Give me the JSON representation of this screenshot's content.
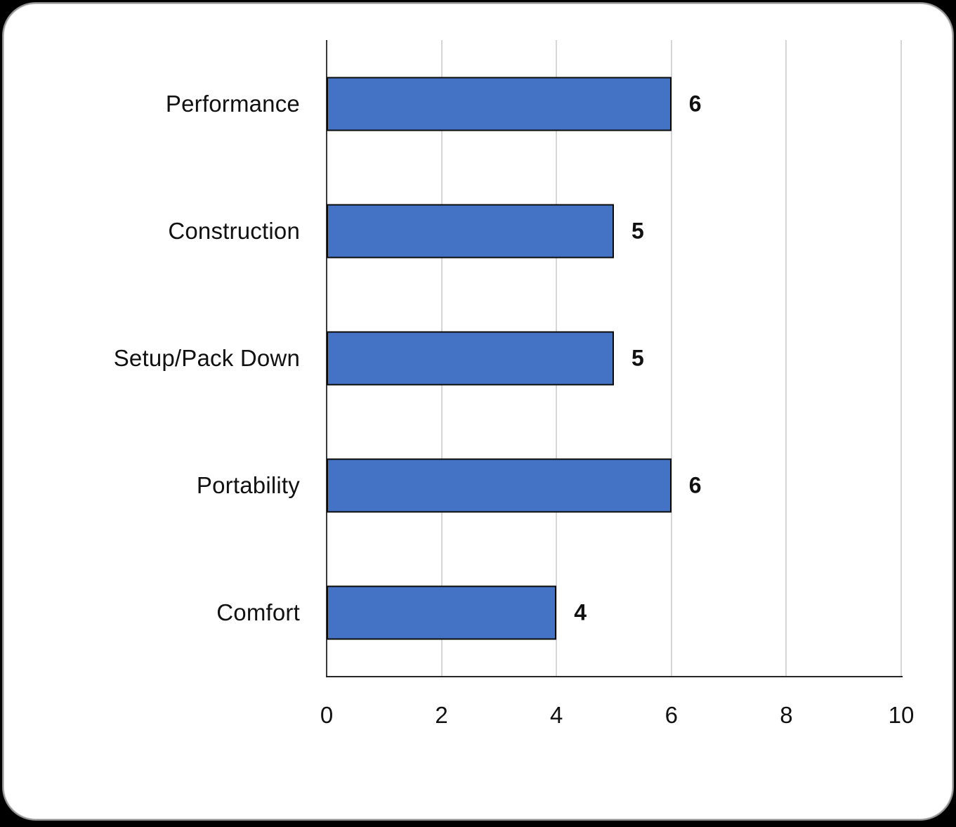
{
  "chart_data": {
    "type": "bar",
    "orientation": "horizontal",
    "title": "",
    "categories": [
      "Performance",
      "Construction",
      "Setup/Pack Down",
      "Portability",
      "Comfort"
    ],
    "values": [
      6,
      5,
      5,
      6,
      4
    ],
    "value_labels": [
      "6",
      "5",
      "5",
      "6",
      "4"
    ],
    "x_ticks": [
      "0",
      "2",
      "4",
      "6",
      "8",
      "10"
    ],
    "xlim": [
      0,
      10
    ],
    "grid": true,
    "legend": false,
    "bar_color": "#4472C4",
    "bar_border_color": "#0a0a0a",
    "gridline_color": "#D6D6D6",
    "axis_line_color": "#262626",
    "label_color": "#111111",
    "card_background": "#ffffff",
    "page_background": "#000000"
  }
}
